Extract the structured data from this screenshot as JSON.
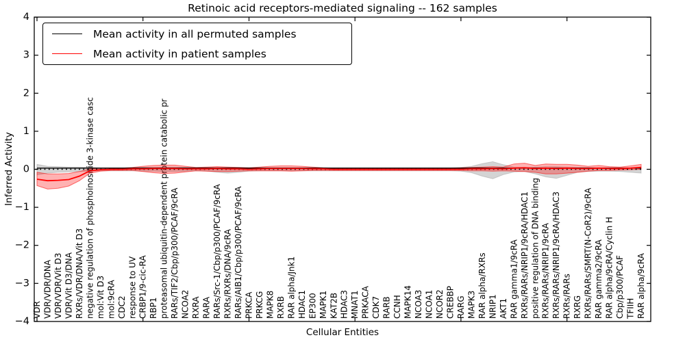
{
  "title": "Retinoic acid receptors-mediated signaling -- 162 samples",
  "legend": {
    "items": [
      {
        "label": "Mean activity in all permuted samples",
        "color": "#000000"
      },
      {
        "label": "Mean activity in patient samples",
        "color": "#ff0000"
      }
    ]
  },
  "colors": {
    "patient_line": "#ff0000",
    "permuted_line": "#000000",
    "patient_band": "rgba(255,0,0,0.30)",
    "patient_band_edge": "rgba(255,0,0,0.55)",
    "permuted_band": "rgba(120,120,120,0.32)",
    "permuted_band_edge": "rgba(120,120,120,0.30)",
    "axis": "#000000"
  },
  "chart_data": {
    "type": "line",
    "title": "Retinoic acid receptors-mediated signaling -- 162 samples",
    "xlabel": "Cellular Entities",
    "ylabel": "Inferred Activity",
    "ylim": [
      -4,
      4
    ],
    "yticks": [
      -4,
      -3,
      -2,
      -1,
      0,
      1,
      2,
      3,
      4
    ],
    "xtick_every": 10,
    "grid": false,
    "legend_position": "upper left",
    "zero_line": {
      "style": "dotted",
      "y": 0
    },
    "categories": [
      "VDR",
      "VDR/VDR/DNA",
      "VDR/VDR/Vit D3",
      "VDR/Vit D3/DNA",
      "RXRs/VDR/DNA/Vit D3",
      "negative regulation of phosphoinositide 3-kinase casc",
      "mol:Vit D3",
      "mol:9cRA",
      "CDC2",
      "response to UV",
      "CRBP1/9-cic-RA",
      "RBP1",
      "proteasomal ubiquitin-dependent protein catabolic pr",
      "RARs/TIF2/Cbp/p300/PCAF/9cRA",
      "NCOA2",
      "RXRA",
      "RARA",
      "RARs/Src-1/Cbp/p300/PCAF/9cRA",
      "RXRs/RXRs/DNA/9cRA",
      "RARs/AIB1/Cbp/p300/PCAF/9cRA",
      "PRKCA",
      "PRKCG",
      "MAPK8",
      "RXRB",
      "RAR alpha/Jnk1",
      "HDAC1",
      "EP300",
      "MAPK1",
      "KAT2B",
      "HDAC3",
      "MNAT1",
      "PRKACA",
      "CDK7",
      "RARB",
      "CCNH",
      "MAPK14",
      "NCOA3",
      "NCOA1",
      "NCOR2",
      "CREBBP",
      "RARG",
      "MAPK3",
      "RAR alpha/RXRs",
      "NRIP1",
      "AKT1",
      "RAR gamma1/9cRA",
      "RXRs/RARs/NRIP1/9cRA/HDAC1",
      "positive regulation of DNA binding",
      "RXRs/RARs/NRIP1/9cRA",
      "RXRs/RARs/NRIP1/9cRA/HDAC3",
      "RXRs/RARs",
      "RXRG",
      "RXRs/RARs/SMRT(N-CoR2)/9cRA",
      "RAR gamma2/9cRA",
      "RAR alpha/9cRA/Cyclin H",
      "Cbp/p300/PCAF",
      "TFIIH",
      "RAR alpha/9cRA"
    ],
    "series": [
      {
        "name": "Mean activity in all permuted samples",
        "color": "#000000",
        "values": [
          0.03,
          0.03,
          0.03,
          0.03,
          0.03,
          0.03,
          0.03,
          0.03,
          0.03,
          0.03,
          0.03,
          0.03,
          0.03,
          0.03,
          0.03,
          0.03,
          0.03,
          0.03,
          0.03,
          0.03,
          0.03,
          0.03,
          0.03,
          0.03,
          0.03,
          0.03,
          0.03,
          0.03,
          0.03,
          0.03,
          0.03,
          0.03,
          0.03,
          0.03,
          0.03,
          0.03,
          0.03,
          0.03,
          0.03,
          0.03,
          0.03,
          0.03,
          0.03,
          0.03,
          0.03,
          0.03,
          0.03,
          0.03,
          0.03,
          0.03,
          0.03,
          0.03,
          0.03,
          0.03,
          0.03,
          0.03,
          0.03,
          0.03
        ]
      },
      {
        "name": "Mean activity in patient samples",
        "color": "#ff0000",
        "values": [
          -0.26,
          -0.3,
          -0.29,
          -0.27,
          -0.18,
          -0.04,
          -0.01,
          0,
          0,
          0.01,
          0.01,
          0.02,
          0.02,
          0.02,
          0.01,
          0.01,
          0.01,
          0.02,
          0.01,
          0.01,
          0,
          0.01,
          0.02,
          0.02,
          0.02,
          0.02,
          0.01,
          0.01,
          0,
          0,
          0,
          0,
          0,
          0,
          0,
          0,
          0,
          0,
          0,
          0,
          0,
          0.01,
          0.01,
          0.02,
          0.01,
          0.03,
          0.04,
          0.02,
          0.03,
          0.02,
          0.03,
          0.02,
          0.02,
          0.03,
          0.02,
          0.02,
          0.03,
          0.05
        ]
      }
    ],
    "bands": [
      {
        "name": "permuted-range",
        "upper": [
          0.13,
          0.08,
          0.07,
          0.06,
          0.06,
          0.05,
          0.04,
          0.04,
          0.04,
          0.04,
          0.05,
          0.05,
          0.06,
          0.06,
          0.05,
          0.04,
          0.05,
          0.05,
          0.05,
          0.05,
          0.04,
          0.04,
          0.04,
          0.04,
          0.04,
          0.04,
          0.04,
          0.04,
          0.04,
          0.04,
          0.04,
          0.04,
          0.04,
          0.04,
          0.04,
          0.04,
          0.04,
          0.04,
          0.04,
          0.04,
          0.05,
          0.08,
          0.15,
          0.2,
          0.12,
          0.06,
          0.05,
          0.06,
          0.07,
          0.07,
          0.06,
          0.05,
          0.05,
          0.04,
          0.04,
          0.04,
          0.04,
          0.04
        ],
        "lower": [
          -0.15,
          -0.1,
          -0.08,
          -0.07,
          -0.06,
          -0.05,
          -0.04,
          -0.04,
          -0.04,
          -0.04,
          -0.05,
          -0.05,
          -0.06,
          -0.06,
          -0.05,
          -0.04,
          -0.05,
          -0.08,
          -0.1,
          -0.08,
          -0.05,
          -0.04,
          -0.04,
          -0.04,
          -0.04,
          -0.04,
          -0.04,
          -0.04,
          -0.04,
          -0.04,
          -0.04,
          -0.04,
          -0.04,
          -0.04,
          -0.04,
          -0.04,
          -0.04,
          -0.04,
          -0.04,
          -0.04,
          -0.05,
          -0.09,
          -0.18,
          -0.25,
          -0.14,
          -0.07,
          -0.06,
          -0.12,
          -0.2,
          -0.24,
          -0.16,
          -0.08,
          -0.06,
          -0.05,
          -0.05,
          -0.06,
          -0.08,
          -0.1
        ]
      },
      {
        "name": "patient-range",
        "upper": [
          -0.08,
          -0.12,
          -0.12,
          -0.11,
          -0.06,
          0.01,
          0.03,
          0.03,
          0.03,
          0.05,
          0.08,
          0.1,
          0.11,
          0.11,
          0.08,
          0.05,
          0.06,
          0.07,
          0.06,
          0.05,
          0.04,
          0.06,
          0.08,
          0.09,
          0.09,
          0.08,
          0.06,
          0.04,
          0.03,
          0.03,
          0.03,
          0.03,
          0.03,
          0.03,
          0.03,
          0.03,
          0.03,
          0.03,
          0.03,
          0.03,
          0.04,
          0.05,
          0.06,
          0.07,
          0.06,
          0.14,
          0.16,
          0.1,
          0.14,
          0.13,
          0.13,
          0.11,
          0.08,
          0.1,
          0.07,
          0.06,
          0.09,
          0.13
        ],
        "lower": [
          -0.43,
          -0.52,
          -0.5,
          -0.44,
          -0.3,
          -0.1,
          -0.05,
          -0.03,
          -0.03,
          -0.03,
          -0.06,
          -0.09,
          -0.11,
          -0.1,
          -0.07,
          -0.04,
          -0.05,
          -0.06,
          -0.06,
          -0.05,
          -0.04,
          -0.04,
          -0.04,
          -0.04,
          -0.05,
          -0.04,
          -0.03,
          -0.03,
          -0.03,
          -0.03,
          -0.03,
          -0.03,
          -0.03,
          -0.03,
          -0.03,
          -0.03,
          -0.03,
          -0.03,
          -0.03,
          -0.03,
          -0.03,
          -0.04,
          -0.04,
          -0.05,
          -0.04,
          -0.05,
          -0.06,
          -0.08,
          -0.12,
          -0.12,
          -0.1,
          -0.08,
          -0.05,
          -0.03,
          -0.03,
          -0.02,
          -0.01,
          0.0
        ]
      }
    ]
  }
}
